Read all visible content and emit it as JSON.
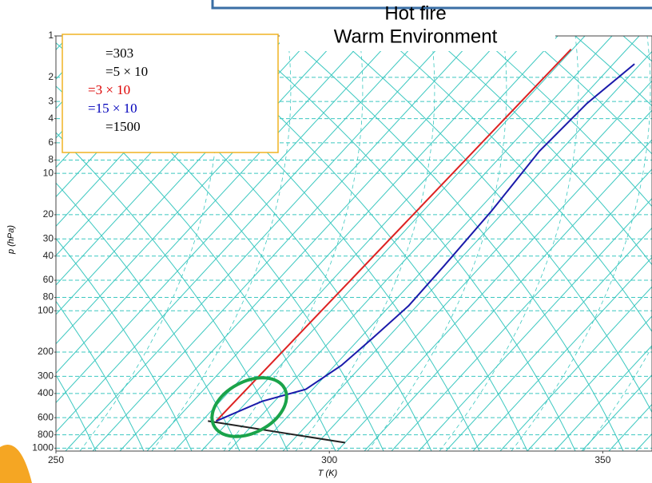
{
  "chart_data": {
    "type": "line",
    "title": "Hot fire",
    "subtitle": "Warm Environment",
    "ylabel": "p (hPa)",
    "xlabel": "T (K)",
    "xlim": [
      250,
      359
    ],
    "xticks": [
      250,
      300,
      350
    ],
    "ylim": [
      1050,
      1
    ],
    "log_y": true,
    "yticks": [
      1,
      2,
      3,
      4,
      6,
      8,
      10,
      20,
      30,
      40,
      60,
      80,
      100,
      200,
      300,
      400,
      600,
      800,
      1000
    ],
    "grid": true,
    "legend_lines": [
      {
        "text": "=303",
        "color": "#000000"
      },
      {
        "text": "=5 × 10",
        "color": "#000000"
      },
      {
        "text": "=3 × 10",
        "color": "#dd0000"
      },
      {
        "text": "=15 × 10",
        "color": "#0000bb"
      },
      {
        "text": "=1500",
        "color": "#000000"
      }
    ],
    "series": [
      {
        "color": "#dd2222",
        "x": [
          279.3,
          344.2
        ],
        "values": [
          635,
          1.25
        ]
      },
      {
        "color": "#1a1aaa",
        "x": [
          279.3,
          287.7,
          295.7,
          302.2,
          308.0,
          314.5,
          321.0,
          329.7,
          338.4,
          347.1,
          355.8
        ],
        "values": [
          635,
          456,
          373,
          250,
          157,
          92,
          47,
          18.7,
          6.9,
          3.1,
          1.6
        ]
      },
      {
        "color": "#222222",
        "x": [
          277.8,
          302.9
        ],
        "values": [
          635,
          912
        ]
      }
    ]
  }
}
